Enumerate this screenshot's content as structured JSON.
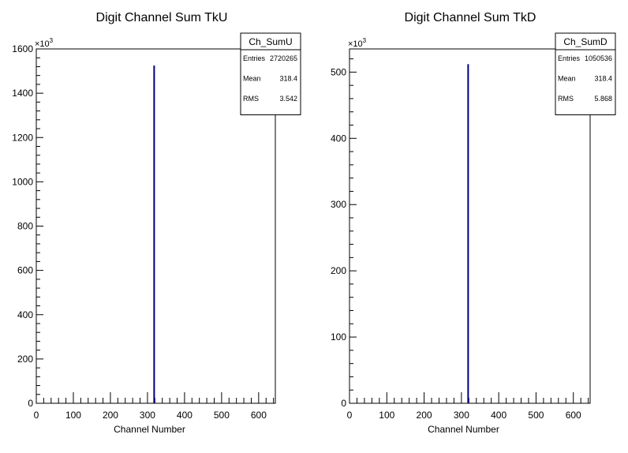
{
  "chart_data": [
    {
      "type": "bar",
      "title": "Digit Channel Sum TkU",
      "xlabel": "Channel Number",
      "ylabel": "",
      "y_exponent_label": "×10",
      "y_exponent_power": "3",
      "xlim": [
        0,
        645
      ],
      "ylim": [
        0,
        1600
      ],
      "x_ticks": [
        0,
        100,
        200,
        300,
        400,
        500,
        600
      ],
      "y_ticks": [
        0,
        200,
        400,
        600,
        800,
        1000,
        1200,
        1400,
        1600
      ],
      "x_tick_labels": [
        "0",
        "100",
        "200",
        "300",
        "400",
        "500",
        "600"
      ],
      "y_tick_labels": [
        "0",
        "200",
        "400",
        "600",
        "800",
        "1000",
        "1200",
        "1400",
        "1600"
      ],
      "bins": [
        {
          "x": 318,
          "y": 1525
        }
      ],
      "bar_color": "#00007f",
      "stats": {
        "name": "Ch_SumU",
        "rows": [
          {
            "label": "Entries",
            "value": "2720265"
          },
          {
            "label": "Mean",
            "value": "318.4"
          },
          {
            "label": "RMS",
            "value": "3.542"
          }
        ]
      }
    },
    {
      "type": "bar",
      "title": "Digit Channel Sum TkD",
      "xlabel": "Channel Number",
      "ylabel": "",
      "y_exponent_label": "×10",
      "y_exponent_power": "3",
      "xlim": [
        0,
        645
      ],
      "ylim": [
        0,
        535
      ],
      "x_ticks": [
        0,
        100,
        200,
        300,
        400,
        500,
        600
      ],
      "y_ticks": [
        0,
        100,
        200,
        300,
        400,
        500
      ],
      "x_tick_labels": [
        "0",
        "100",
        "200",
        "300",
        "400",
        "500",
        "600"
      ],
      "y_tick_labels": [
        "0",
        "100",
        "200",
        "300",
        "400",
        "500"
      ],
      "bins": [
        {
          "x": 318,
          "y": 512
        }
      ],
      "bar_color": "#00007f",
      "stats": {
        "name": "Ch_SumD",
        "rows": [
          {
            "label": "Entries",
            "value": "1050536"
          },
          {
            "label": "Mean",
            "value": "318.4"
          },
          {
            "label": "RMS",
            "value": "5.868"
          }
        ]
      }
    }
  ]
}
